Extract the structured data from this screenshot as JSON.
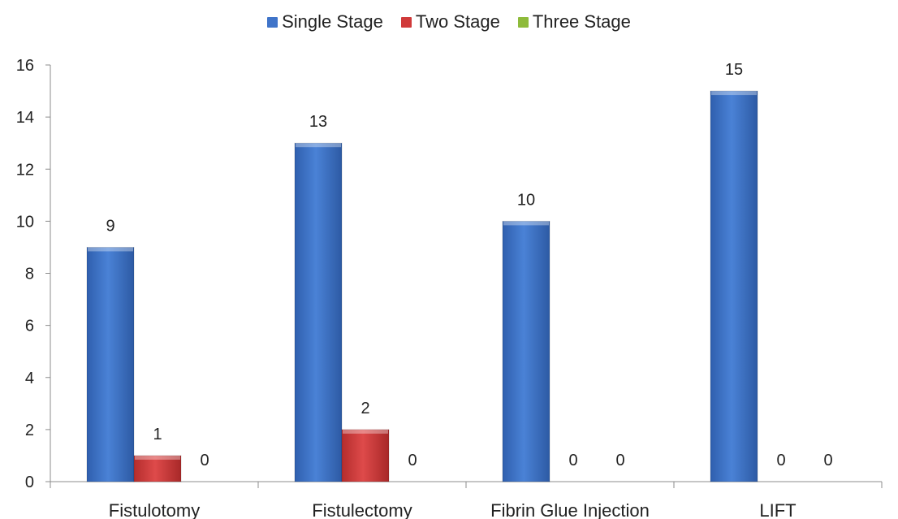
{
  "chart_data": {
    "type": "bar",
    "title": "",
    "xlabel": "",
    "ylabel": "",
    "categories": [
      "Fistulotomy",
      "Fistulectomy",
      "Fibrin Glue Injection",
      "LIFT"
    ],
    "series": [
      {
        "name": "Single Stage",
        "values": [
          9,
          13,
          10,
          15
        ],
        "color": "#3F74C9"
      },
      {
        "name": "Two Stage",
        "values": [
          1,
          2,
          0,
          0
        ],
        "color": "#D03A3A"
      },
      {
        "name": "Three Stage",
        "values": [
          0,
          0,
          0,
          0
        ],
        "color": "#8EBB3B"
      }
    ],
    "ylim": [
      0,
      16
    ],
    "yticks": [
      "0",
      "2",
      "4",
      "6",
      "8",
      "10",
      "12",
      "14",
      "16"
    ],
    "grid": false,
    "legend_position": "top-center",
    "data_labels": true
  }
}
